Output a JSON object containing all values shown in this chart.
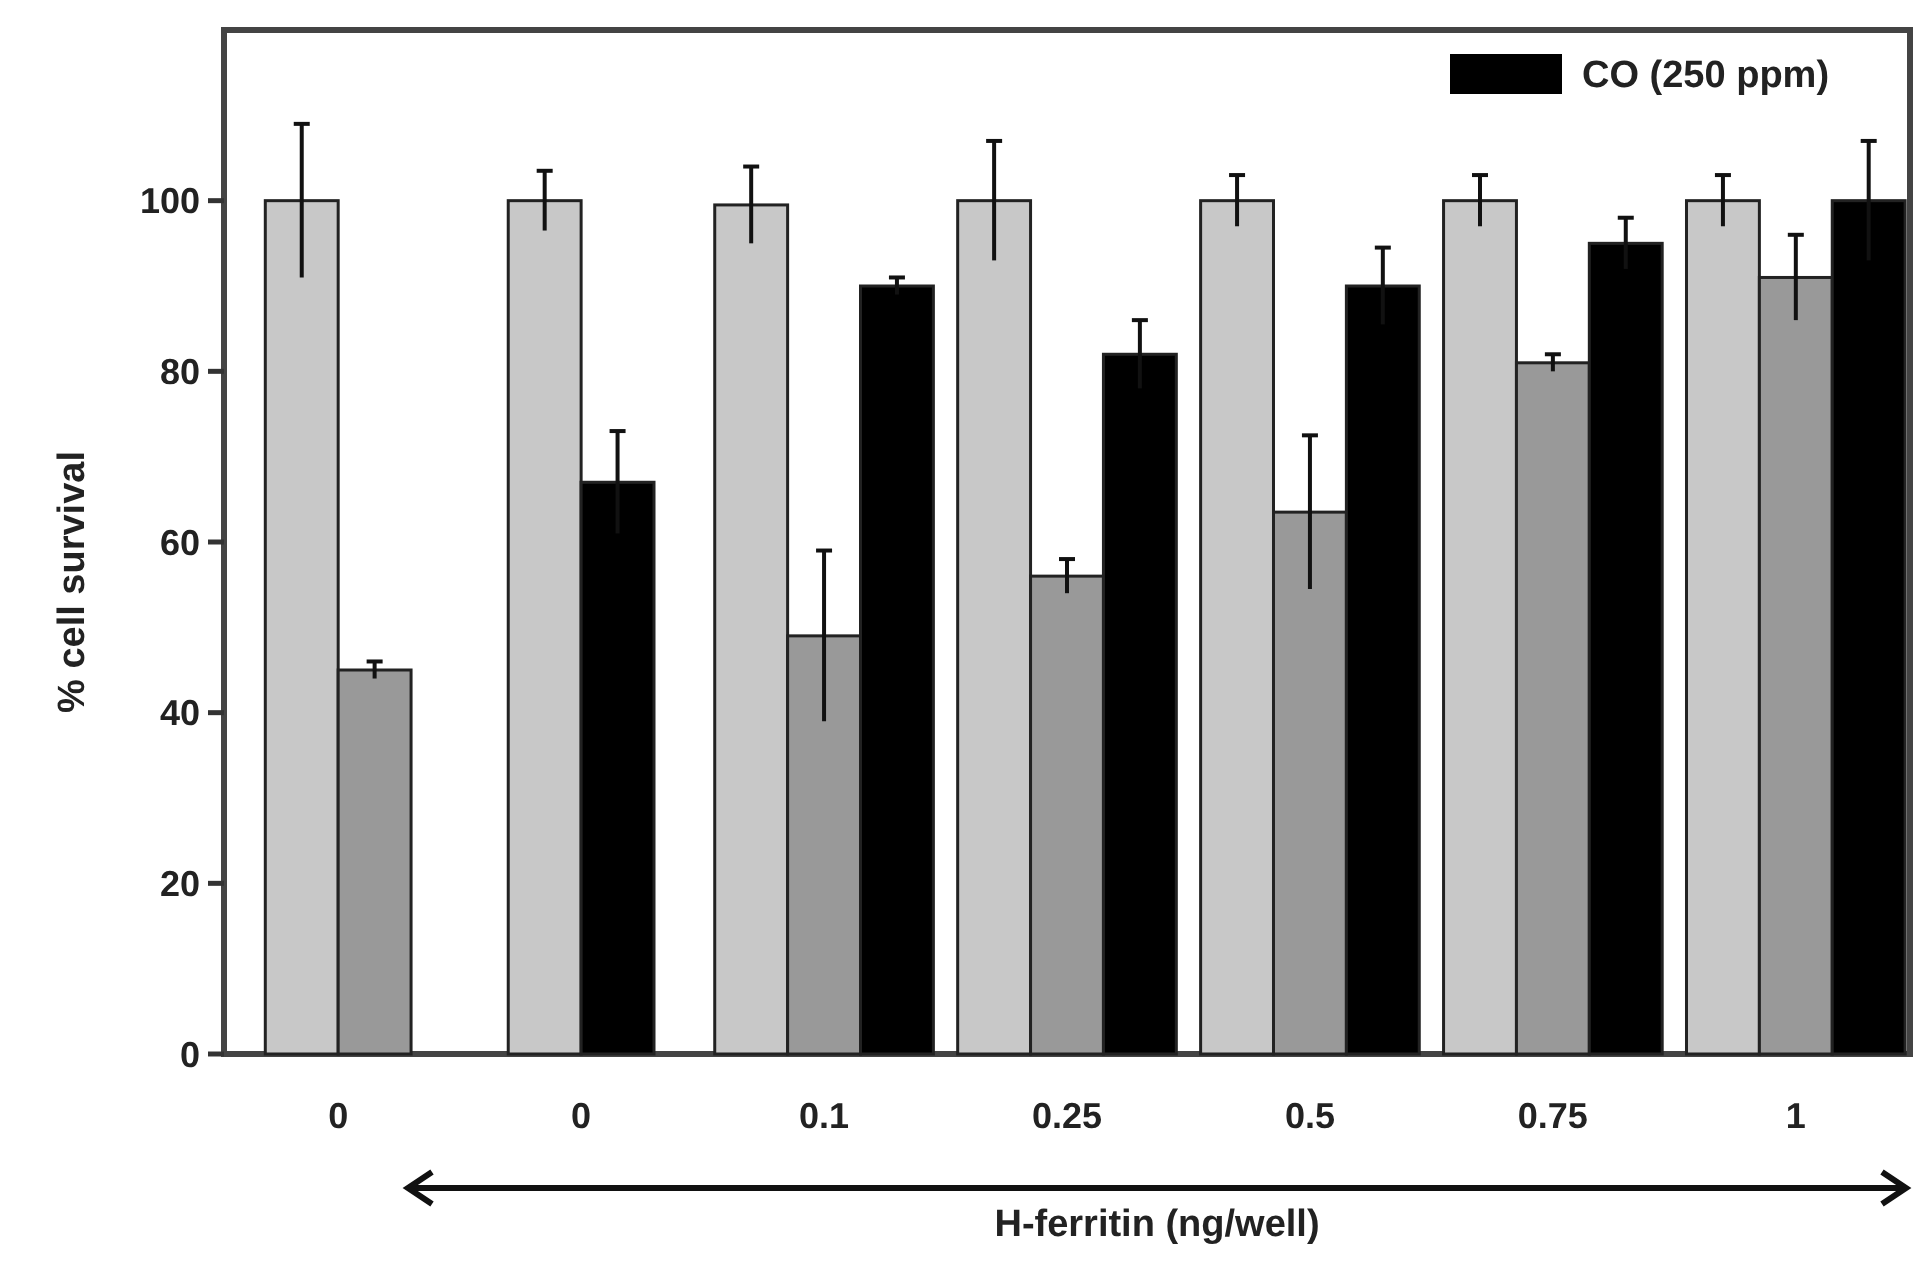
{
  "chart_data": {
    "type": "bar",
    "xlabel": "H-ferritin (ng/well)",
    "ylabel": "% cell survival",
    "categories": [
      "0",
      "0",
      "0.1",
      "0.25",
      "0.5",
      "0.75",
      "1"
    ],
    "ylim": [
      0,
      120
    ],
    "yticks": [
      0,
      20,
      40,
      60,
      80,
      100
    ],
    "legend": "top right",
    "grid": false,
    "series": [
      {
        "color": "#c8c8c8",
        "values": [
          100,
          100,
          99.5,
          100,
          100,
          100,
          100
        ],
        "errors": [
          9,
          3.5,
          4.5,
          7,
          3,
          3,
          3
        ]
      },
      {
        "color": "#999999",
        "values": [
          45,
          null,
          49,
          56,
          63.5,
          81,
          91
        ],
        "errors": [
          1,
          null,
          10,
          2,
          9,
          1,
          5
        ]
      },
      {
        "name": "CO (250 ppm)",
        "color": "#000000",
        "values": [
          null,
          67,
          90,
          82,
          90,
          95,
          100
        ],
        "errors": [
          null,
          6,
          1,
          4,
          4.5,
          3,
          7
        ]
      }
    ]
  }
}
